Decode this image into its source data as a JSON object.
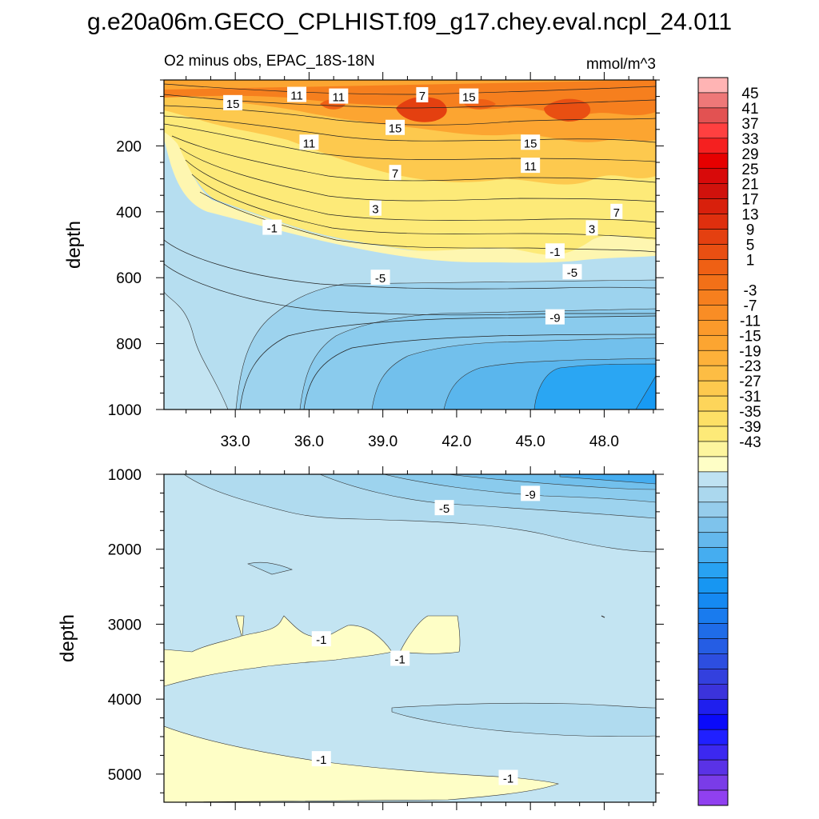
{
  "page_title": "g.e20a06m.GECO_CPLHIST.f09_g17.chey.eval.ncpl_24.011",
  "colors": {
    "positive": [
      "#fefec6",
      "#fdf59e",
      "#fdea78",
      "#fde066",
      "#fdd55a",
      "#fdc94e",
      "#fdbd44",
      "#fdb13a",
      "#fca531",
      "#fb9a2b",
      "#f98d25",
      "#f67f1e",
      "#f27018",
      "#ef6014",
      "#e94f12",
      "#e44010",
      "#df2f0e",
      "#d8200c",
      "#d0120c",
      "#d80a0a",
      "#e60000",
      "#f52020",
      "#ff4040",
      "#e25252",
      "#ee7878",
      "#ffb4b4"
    ],
    "negative": [
      "#bfe2f2",
      "#abd8ee",
      "#96cdec",
      "#7ec3ec",
      "#64b8ed",
      "#45adf0",
      "#28a2f2",
      "#1796f2",
      "#1589f2",
      "#197bee",
      "#1f6ce8",
      "#255de4",
      "#2d4ee0",
      "#3340de",
      "#3b33db",
      "#1f1fee",
      "#0a0afa",
      "#2020ff",
      "#3c28f0",
      "#5a32e6",
      "#7a3ce8",
      "#9040f0"
    ]
  },
  "colorbar": {
    "ticks": [
      "45",
      "41",
      "37",
      "33",
      "29",
      "25",
      "21",
      "17",
      "13",
      "9",
      "5",
      "1",
      "-3",
      "-7",
      "-11",
      "-15",
      "-19",
      "-23",
      "-27",
      "-31",
      "-35",
      "-39",
      "-43"
    ]
  },
  "chart_data": [
    {
      "type": "contour",
      "title": "O2 minus obs, EPAC_18S-18N",
      "units": "mmol/m^3",
      "xlabel": "",
      "ylabel": "depth",
      "x_ticks": [
        "33.0",
        "36.0",
        "39.0",
        "42.0",
        "45.0",
        "48.0"
      ],
      "x_tick_values": [
        33,
        36,
        39,
        42,
        45,
        48
      ],
      "xlim": [
        30.1,
        50.1
      ],
      "y_ticks": [
        "200",
        "400",
        "600",
        "800",
        "1000"
      ],
      "y_tick_values": [
        200,
        400,
        600,
        800,
        1000
      ],
      "ylim": [
        0,
        1000
      ],
      "contour_labels": [
        {
          "text": "15",
          "x": 32.9,
          "y": 70
        },
        {
          "text": "11",
          "x": 35.5,
          "y": 45
        },
        {
          "text": "11",
          "x": 37.2,
          "y": 50
        },
        {
          "text": "7",
          "x": 40.6,
          "y": 46
        },
        {
          "text": "15",
          "x": 42.5,
          "y": 50
        },
        {
          "text": "15",
          "x": 39.5,
          "y": 145
        },
        {
          "text": "11",
          "x": 36.0,
          "y": 190
        },
        {
          "text": "15",
          "x": 45.0,
          "y": 190
        },
        {
          "text": "7",
          "x": 39.5,
          "y": 282
        },
        {
          "text": "11",
          "x": 45.0,
          "y": 260
        },
        {
          "text": "3",
          "x": 38.7,
          "y": 390
        },
        {
          "text": "7",
          "x": 48.5,
          "y": 400
        },
        {
          "text": "3",
          "x": 47.5,
          "y": 450
        },
        {
          "text": "-1",
          "x": 34.5,
          "y": 448
        },
        {
          "text": "-1",
          "x": 46.0,
          "y": 520
        },
        {
          "text": "-5",
          "x": 38.9,
          "y": 600
        },
        {
          "text": "-5",
          "x": 46.7,
          "y": 583
        },
        {
          "text": "-9",
          "x": 46.0,
          "y": 720
        }
      ]
    },
    {
      "type": "contour",
      "title": "",
      "units": "",
      "xlabel": "",
      "ylabel": "depth",
      "x_ticks": [],
      "xlim": [
        30.1,
        50.1
      ],
      "y_ticks": [
        "1000",
        "2000",
        "3000",
        "4000",
        "5000"
      ],
      "y_tick_values": [
        1000,
        2000,
        3000,
        4000,
        5000
      ],
      "ylim": [
        1000,
        5375
      ],
      "contour_labels": [
        {
          "text": "-9",
          "x": 45.0,
          "y": 1260
        },
        {
          "text": "-5",
          "x": 41.5,
          "y": 1450
        },
        {
          "text": "-1",
          "x": 36.5,
          "y": 3200
        },
        {
          "text": "-1",
          "x": 39.7,
          "y": 3460
        },
        {
          "text": "-1",
          "x": 36.5,
          "y": 4800
        },
        {
          "text": "-1",
          "x": 44.1,
          "y": 5050
        }
      ]
    }
  ]
}
